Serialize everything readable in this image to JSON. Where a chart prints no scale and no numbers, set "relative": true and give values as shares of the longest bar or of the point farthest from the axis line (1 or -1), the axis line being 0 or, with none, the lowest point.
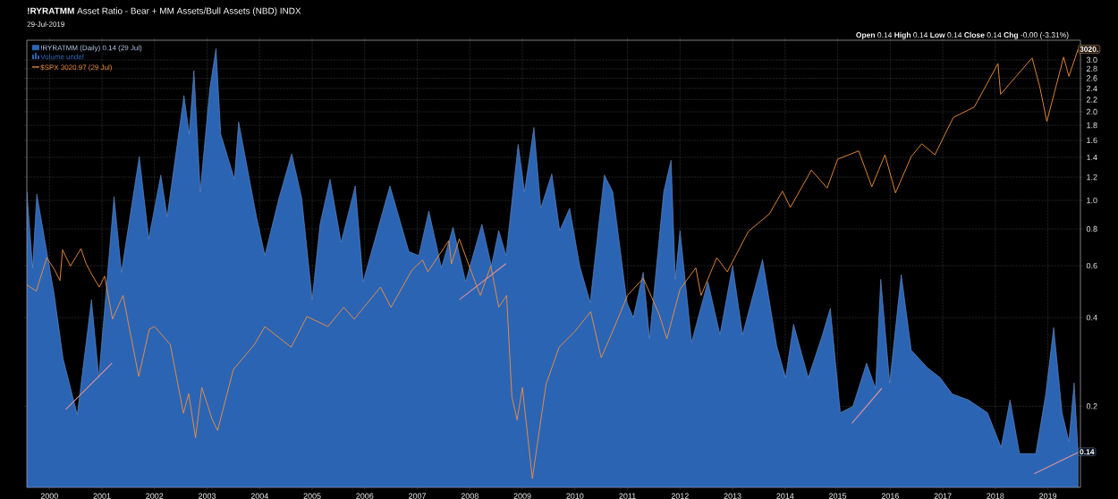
{
  "chart_data": [
    {
      "type": "area",
      "title": "**!RYRATMM** Asset Ratio - Bear + MM Assets/Bull Assets (NBD) INDX",
      "subtitle": "29-Jul-2019",
      "log": "y",
      "grid": true,
      "legend": "top left",
      "xlim": [
        1999.57,
        2019.62
      ],
      "xticks": [
        2000,
        2001,
        2002,
        2003,
        2004,
        2005,
        2006,
        2007,
        2008,
        2009,
        2010,
        2011,
        2012,
        2013,
        2014,
        2015,
        2016,
        2017,
        2018,
        2019
      ],
      "ylim": [
        0.106,
        3.5
      ],
      "yticks": [
        0.2,
        0.4,
        0.6,
        0.8,
        {
          "value": 1,
          "label": "1.0"
        },
        1.2,
        1.4,
        1.6,
        1.8,
        {
          "value": 2,
          "label": "2.0"
        },
        2.2,
        2.4,
        2.6,
        2.8,
        {
          "value": 3,
          "label": "3.0"
        }
      ],
      "series": [
        {
          "name": "!RYRATMM (Daily) 0.14 (29 Jul)",
          "color": "#2c64b4",
          "x": [
            1999.57,
            1999.68,
            1999.76,
            2000.09,
            2000.26,
            2000.53,
            2000.8,
            2000.94,
            2001.23,
            2001.37,
            2001.71,
            2001.89,
            2002.12,
            2002.24,
            2002.56,
            2002.66,
            2002.75,
            2002.87,
            2003.05,
            2003.17,
            2003.26,
            2003.52,
            2003.6,
            2003.94,
            2004.1,
            2004.37,
            2004.61,
            2004.8,
            2005.0,
            2005.15,
            2005.34,
            2005.55,
            2005.82,
            2005.97,
            2006.48,
            2006.84,
            2007.03,
            2007.22,
            2007.46,
            2007.68,
            2007.92,
            2008.23,
            2008.41,
            2008.55,
            2008.69,
            2008.92,
            2009.04,
            2009.22,
            2009.35,
            2009.56,
            2009.71,
            2009.9,
            2010.09,
            2010.29,
            2010.56,
            2010.72,
            2010.99,
            2011.11,
            2011.3,
            2011.42,
            2011.69,
            2011.83,
            2011.91,
            2012.0,
            2012.22,
            2012.53,
            2012.76,
            2013.0,
            2013.19,
            2013.57,
            2013.84,
            2014.01,
            2014.16,
            2014.44,
            2014.69,
            2014.86,
            2015.05,
            2015.29,
            2015.55,
            2015.72,
            2015.82,
            2015.99,
            2016.21,
            2016.4,
            2016.71,
            2016.95,
            2017.18,
            2017.49,
            2017.85,
            2018.11,
            2018.28,
            2018.46,
            2018.77,
            2018.96,
            2019.11,
            2019.27,
            2019.4,
            2019.5,
            2019.575
          ],
          "values": [
            1.07,
            0.59,
            1.05,
            0.48,
            0.29,
            0.187,
            0.46,
            0.25,
            1.03,
            0.57,
            1.41,
            0.74,
            1.22,
            0.88,
            2.27,
            1.68,
            2.76,
            1.07,
            2.38,
            3.28,
            1.68,
            1.18,
            1.85,
            0.88,
            0.65,
            1.02,
            1.44,
            1.02,
            0.46,
            0.83,
            1.18,
            0.72,
            1.12,
            0.53,
            1.12,
            0.67,
            0.65,
            0.92,
            0.59,
            0.81,
            0.53,
            0.83,
            0.6,
            0.79,
            0.65,
            1.55,
            1.07,
            1.77,
            0.94,
            1.23,
            0.79,
            0.94,
            0.6,
            0.45,
            1.22,
            1.07,
            0.45,
            0.4,
            0.57,
            0.34,
            1.07,
            1.37,
            0.54,
            0.79,
            0.33,
            0.53,
            0.35,
            0.6,
            0.35,
            0.63,
            0.32,
            0.25,
            0.38,
            0.25,
            0.34,
            0.43,
            0.19,
            0.2,
            0.28,
            0.23,
            0.54,
            0.24,
            0.56,
            0.31,
            0.27,
            0.25,
            0.22,
            0.21,
            0.19,
            0.145,
            0.21,
            0.138,
            0.138,
            0.22,
            0.37,
            0.19,
            0.152,
            0.24,
            0.14
          ]
        },
        {
          "type": "line",
          "color": "#d4909c",
          "x": [
            2000.31,
            2001.19
          ],
          "values": [
            0.195,
            0.28
          ]
        },
        {
          "type": "line",
          "color": "#d4909c",
          "x": [
            2007.8,
            2008.69
          ],
          "values": [
            0.46,
            0.61
          ]
        },
        {
          "type": "line",
          "color": "#d4909c",
          "x": [
            2015.27,
            2015.84
          ],
          "values": [
            0.175,
            0.23
          ]
        },
        {
          "type": "line",
          "color": "#d4909c",
          "x": [
            2018.74,
            2019.6
          ],
          "values": [
            0.118,
            0.14
          ]
        }
      ],
      "annotations": [
        "**Open** 0.14 **High** 0.14 **Low** 0.14 **Close** 0.14 **Chg** -0.00 (-3.31%)",
        "Volume undef",
        {
          "text": "0.14",
          "x": 2019.575,
          "y": 0.14
        }
      ]
    },
    {
      "type": "line",
      "relative": true,
      "legend": "top left",
      "xlim": [
        1999.57,
        2019.62
      ],
      "series": [
        {
          "name": "$SPX 3020.97 (29 Jul)",
          "color": "#f0913a",
          "x": [
            1999.57,
            1999.75,
            1999.95,
            2000.1,
            2000.2,
            2000.25,
            2000.4,
            2000.6,
            2000.7,
            2000.8,
            2000.95,
            2001.05,
            2001.2,
            2001.4,
            2001.7,
            2001.9,
            2002.0,
            2002.3,
            2002.55,
            2002.65,
            2002.78,
            2002.9,
            2003.1,
            2003.2,
            2003.5,
            2003.9,
            2004.1,
            2004.6,
            2004.9,
            2005.3,
            2005.6,
            2005.8,
            2006.3,
            2006.5,
            2006.9,
            2007.1,
            2007.2,
            2007.6,
            2007.65,
            2007.8,
            2008.0,
            2008.2,
            2008.4,
            2008.55,
            2008.7,
            2008.8,
            2008.9,
            2009.0,
            2009.19,
            2009.45,
            2009.7,
            2010.0,
            2010.3,
            2010.5,
            2010.7,
            2011.0,
            2011.3,
            2011.6,
            2011.75,
            2012.0,
            2012.3,
            2012.4,
            2012.7,
            2012.9,
            2013.3,
            2013.7,
            2013.95,
            2014.1,
            2014.5,
            2014.8,
            2015.0,
            2015.4,
            2015.65,
            2015.9,
            2016.1,
            2016.4,
            2016.6,
            2016.85,
            2017.2,
            2017.6,
            2018.05,
            2018.1,
            2018.7,
            2018.85,
            2018.98,
            2019.3,
            2019.4,
            2019.575
          ],
          "values": [
            0.462,
            0.448,
            0.524,
            0.496,
            0.472,
            0.542,
            0.505,
            0.545,
            0.51,
            0.487,
            0.457,
            0.482,
            0.384,
            0.438,
            0.253,
            0.361,
            0.367,
            0.326,
            0.169,
            0.214,
            0.113,
            0.228,
            0.154,
            0.13,
            0.269,
            0.326,
            0.367,
            0.32,
            0.39,
            0.367,
            0.411,
            0.384,
            0.457,
            0.411,
            0.496,
            0.519,
            0.492,
            0.563,
            0.51,
            0.567,
            0.501,
            0.438,
            0.505,
            0.411,
            0.438,
            0.207,
            0.154,
            0.228,
            0.02,
            0.235,
            0.32,
            0.356,
            0.401,
            0.296,
            0.351,
            0.438,
            0.477,
            0.396,
            0.339,
            0.452,
            0.501,
            0.438,
            0.524,
            0.492,
            0.584,
            0.624,
            0.676,
            0.639,
            0.724,
            0.683,
            0.749,
            0.768,
            0.686,
            0.759,
            0.672,
            0.755,
            0.784,
            0.759,
            0.844,
            0.868,
            0.967,
            0.897,
            0.98,
            0.912,
            0.835,
            0.982,
            0.938,
            1
          ]
        }
      ],
      "annotations": [
        "3020."
      ]
    }
  ]
}
